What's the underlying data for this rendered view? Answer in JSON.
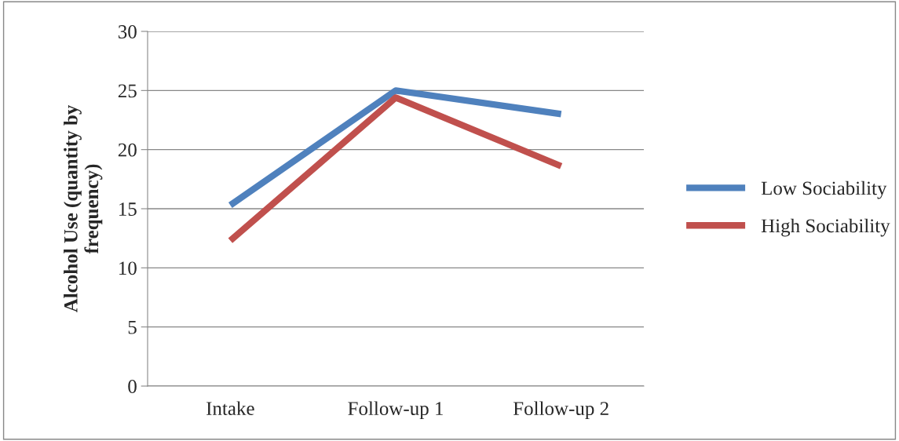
{
  "chart_data": {
    "type": "line",
    "ylabel": "Alcohol Use (quantity by\nfrequency)",
    "categories": [
      "Intake",
      "Follow-up 1",
      "Follow-up 2"
    ],
    "series": [
      {
        "name": "Low Sociability",
        "color": "#4f81bd",
        "values": [
          15.3,
          25.0,
          23.0
        ]
      },
      {
        "name": "High Sociability",
        "color": "#c0504d",
        "values": [
          12.3,
          24.4,
          18.6
        ]
      }
    ],
    "ylim": [
      0,
      30
    ],
    "yticks": [
      0,
      5,
      10,
      15,
      20,
      25,
      30
    ],
    "grid": "y",
    "legend": "right",
    "marker": "none",
    "line_style": "solid"
  }
}
